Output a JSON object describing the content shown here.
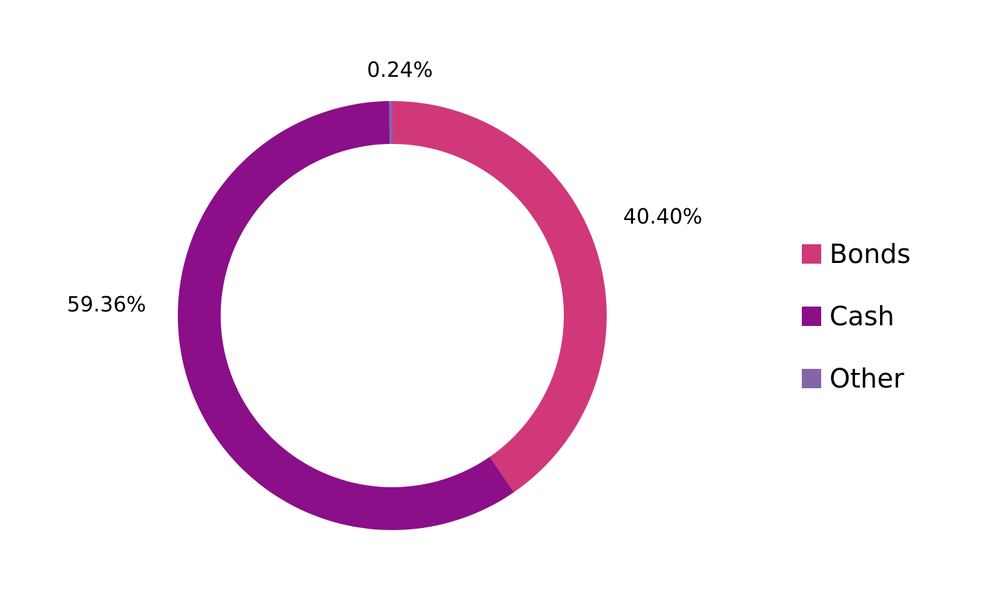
{
  "chart_data": {
    "type": "pie",
    "variant": "donut",
    "title": "",
    "slices": [
      {
        "label": "Bonds",
        "value": 40.4,
        "display": "40.40%",
        "color": "#D0387A"
      },
      {
        "label": "Cash",
        "value": 59.36,
        "display": "59.36%",
        "color": "#8B0F88"
      },
      {
        "label": "Other",
        "value": 0.24,
        "display": "0.24%",
        "color": "#8466A8"
      }
    ],
    "legend_position": "right",
    "start_angle": "top",
    "direction": "clockwise"
  }
}
